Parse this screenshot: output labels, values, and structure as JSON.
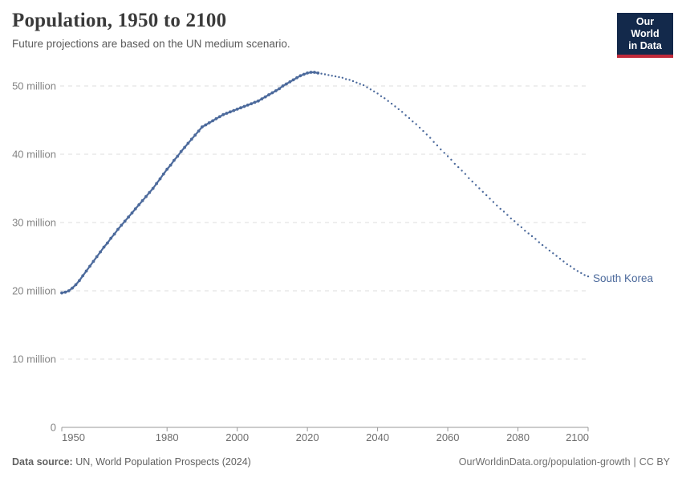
{
  "logo": {
    "line1": "Our World",
    "line2": "in Data"
  },
  "footer": {
    "datasource_label": "Data source:",
    "datasource_value": "UN, World Population Prospects (2024)",
    "url": "OurWorldinData.org/population-growth",
    "separator": "|",
    "license": "CC BY"
  },
  "colors": {
    "line": "#4C6A9C",
    "logo_navy": "#13294B",
    "logo_red": "#C0293A",
    "gridline": "#dedede",
    "axis": "#999999",
    "y_label": "#848484",
    "x_label": "#6e6e6e"
  },
  "chart_data": {
    "type": "line",
    "title": "Population, 1950 to 2100",
    "subtitle": "Future projections are based on the UN medium scenario.",
    "entity": "South Korea",
    "xlim": [
      1950,
      2100
    ],
    "ylim": [
      0,
      55
    ],
    "grid": true,
    "legend_position": "line-end-label",
    "x_ticks": [
      1950,
      1980,
      2000,
      2020,
      2040,
      2060,
      2080,
      2100
    ],
    "y_ticks": [
      {
        "value": 0,
        "label": "0"
      },
      {
        "value": 10,
        "label": "10 million"
      },
      {
        "value": 20,
        "label": "20 million"
      },
      {
        "value": 30,
        "label": "30 million"
      },
      {
        "value": 40,
        "label": "40 million"
      },
      {
        "value": 50,
        "label": "50 million"
      }
    ],
    "unit": "million people",
    "series": [
      {
        "name": "historical",
        "style": "solid-with-markers",
        "start_year": 1950,
        "end_year": 2023,
        "values": [
          19.7,
          19.8,
          20.0,
          20.4,
          20.9,
          21.5,
          22.2,
          22.9,
          23.6,
          24.3,
          25.0,
          25.7,
          26.4,
          27.0,
          27.7,
          28.3,
          29.0,
          29.6,
          30.2,
          30.8,
          31.4,
          32.0,
          32.6,
          33.2,
          33.8,
          34.4,
          35.0,
          35.7,
          36.4,
          37.1,
          37.8,
          38.4,
          39.1,
          39.7,
          40.4,
          41.0,
          41.6,
          42.2,
          42.8,
          43.4,
          44.0,
          44.3,
          44.6,
          44.9,
          45.2,
          45.5,
          45.8,
          46.0,
          46.2,
          46.4,
          46.6,
          46.8,
          47.0,
          47.2,
          47.4,
          47.6,
          47.8,
          48.1,
          48.4,
          48.7,
          49.0,
          49.3,
          49.6,
          50.0,
          50.3,
          50.6,
          50.9,
          51.2,
          51.5,
          51.7,
          51.9,
          52.0,
          52.0,
          51.9
        ]
      },
      {
        "name": "projection",
        "style": "dotted",
        "start_year": 2024,
        "end_year": 2100,
        "values": [
          51.8,
          51.7,
          51.6,
          51.5,
          51.4,
          51.3,
          51.2,
          51.0,
          50.9,
          50.7,
          50.5,
          50.3,
          50.1,
          49.8,
          49.5,
          49.2,
          48.9,
          48.5,
          48.2,
          47.8,
          47.4,
          47.0,
          46.6,
          46.2,
          45.7,
          45.3,
          44.8,
          44.4,
          43.9,
          43.4,
          42.9,
          42.4,
          41.8,
          41.3,
          40.7,
          40.2,
          39.7,
          39.2,
          38.6,
          38.1,
          37.6,
          37.1,
          36.5,
          36.0,
          35.5,
          35.0,
          34.5,
          34.0,
          33.5,
          33.0,
          32.5,
          32.0,
          31.6,
          31.1,
          30.6,
          30.2,
          29.7,
          29.3,
          28.8,
          28.4,
          28.0,
          27.6,
          27.1,
          26.7,
          26.3,
          25.9,
          25.5,
          25.1,
          24.7,
          24.3,
          23.9,
          23.6,
          23.2,
          22.9,
          22.6,
          22.3,
          22.1
        ]
      }
    ]
  }
}
